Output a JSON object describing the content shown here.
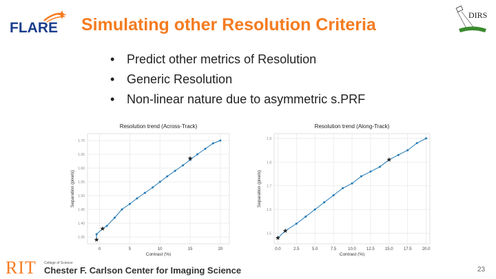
{
  "header": {
    "logo_text": "FLARE",
    "title": "Simulating other Resolution Criteria",
    "right_logo_text": "DIRS"
  },
  "bullets": [
    {
      "symbol": "•",
      "text": "Predict other metrics of Resolution"
    },
    {
      "symbol": "•",
      "text": "Generic Resolution"
    },
    {
      "symbol": "•",
      "text": "Non-linear nature due to asymmetric s.PRF"
    }
  ],
  "chart_data": [
    {
      "type": "line",
      "title": "Resolution trend (Across-Track)",
      "xlabel": "Contrast (%)",
      "ylabel": "Separation (pixels)",
      "xlim": [
        -2,
        21.5
      ],
      "ylim": [
        1.325,
        1.725
      ],
      "xticks": [
        0,
        5,
        10,
        15,
        20
      ],
      "yticks": [
        1.35,
        1.4,
        1.45,
        1.5,
        1.55,
        1.6,
        1.65,
        1.7
      ],
      "ytick_labels": [
        "1.35",
        "1.40",
        "1.45",
        "1.50",
        "1.55",
        "1.60",
        "1.65",
        "1.70"
      ],
      "x": [
        -0.5,
        -0.5,
        0.5,
        1.2,
        2.5,
        3.7,
        5,
        6.2,
        7.5,
        8.8,
        10,
        11.2,
        12.5,
        13.8,
        15,
        16.2,
        17.5,
        18.8,
        20
      ],
      "y": [
        1.34,
        1.36,
        1.38,
        1.39,
        1.42,
        1.45,
        1.47,
        1.49,
        1.51,
        1.53,
        1.55,
        1.57,
        1.59,
        1.61,
        1.63,
        1.65,
        1.67,
        1.69,
        1.7
      ],
      "star_points": [
        {
          "x": -0.5,
          "y": 1.34
        },
        {
          "x": 0.5,
          "y": 1.38
        },
        {
          "x": 15,
          "y": 1.635
        }
      ],
      "line_color": "#1f77b4",
      "grid": true
    },
    {
      "type": "line",
      "title": "Resolution trend (Along-Track)",
      "xlabel": "Contrast (%)",
      "ylabel": "Separation (pixels)",
      "xlim": [
        -0.5,
        20.5
      ],
      "ylim": [
        1.455,
        1.92
      ],
      "xticks": [
        0.0,
        2.5,
        5.0,
        7.5,
        10.0,
        12.5,
        15.0,
        17.5,
        20.0
      ],
      "xtick_labels": [
        "0.0",
        "2.5",
        "5.0",
        "7.5",
        "10.0",
        "12.5",
        "15.0",
        "17.5",
        "20.0"
      ],
      "yticks": [
        1.5,
        1.6,
        1.7,
        1.8,
        1.9
      ],
      "x": [
        0,
        1,
        2.5,
        3.75,
        5,
        6.25,
        7.5,
        8.75,
        10,
        11.25,
        12.5,
        13.75,
        15,
        16.25,
        17.5,
        18.75,
        20
      ],
      "y": [
        1.48,
        1.51,
        1.54,
        1.57,
        1.6,
        1.63,
        1.66,
        1.69,
        1.71,
        1.74,
        1.76,
        1.78,
        1.81,
        1.83,
        1.85,
        1.88,
        1.9
      ],
      "star_points": [
        {
          "x": 0,
          "y": 1.48
        },
        {
          "x": 1,
          "y": 1.51
        },
        {
          "x": 15,
          "y": 1.81
        }
      ],
      "line_color": "#1f77b4",
      "grid": true
    }
  ],
  "footer": {
    "brand": "RIT",
    "college": "College of Science",
    "center_name": "Chester F. Carlson Center for Imaging Science",
    "page_number": "23"
  },
  "colors": {
    "title": "#f47b20",
    "accent_blue": "#1a3e8c",
    "star": "#222222"
  }
}
